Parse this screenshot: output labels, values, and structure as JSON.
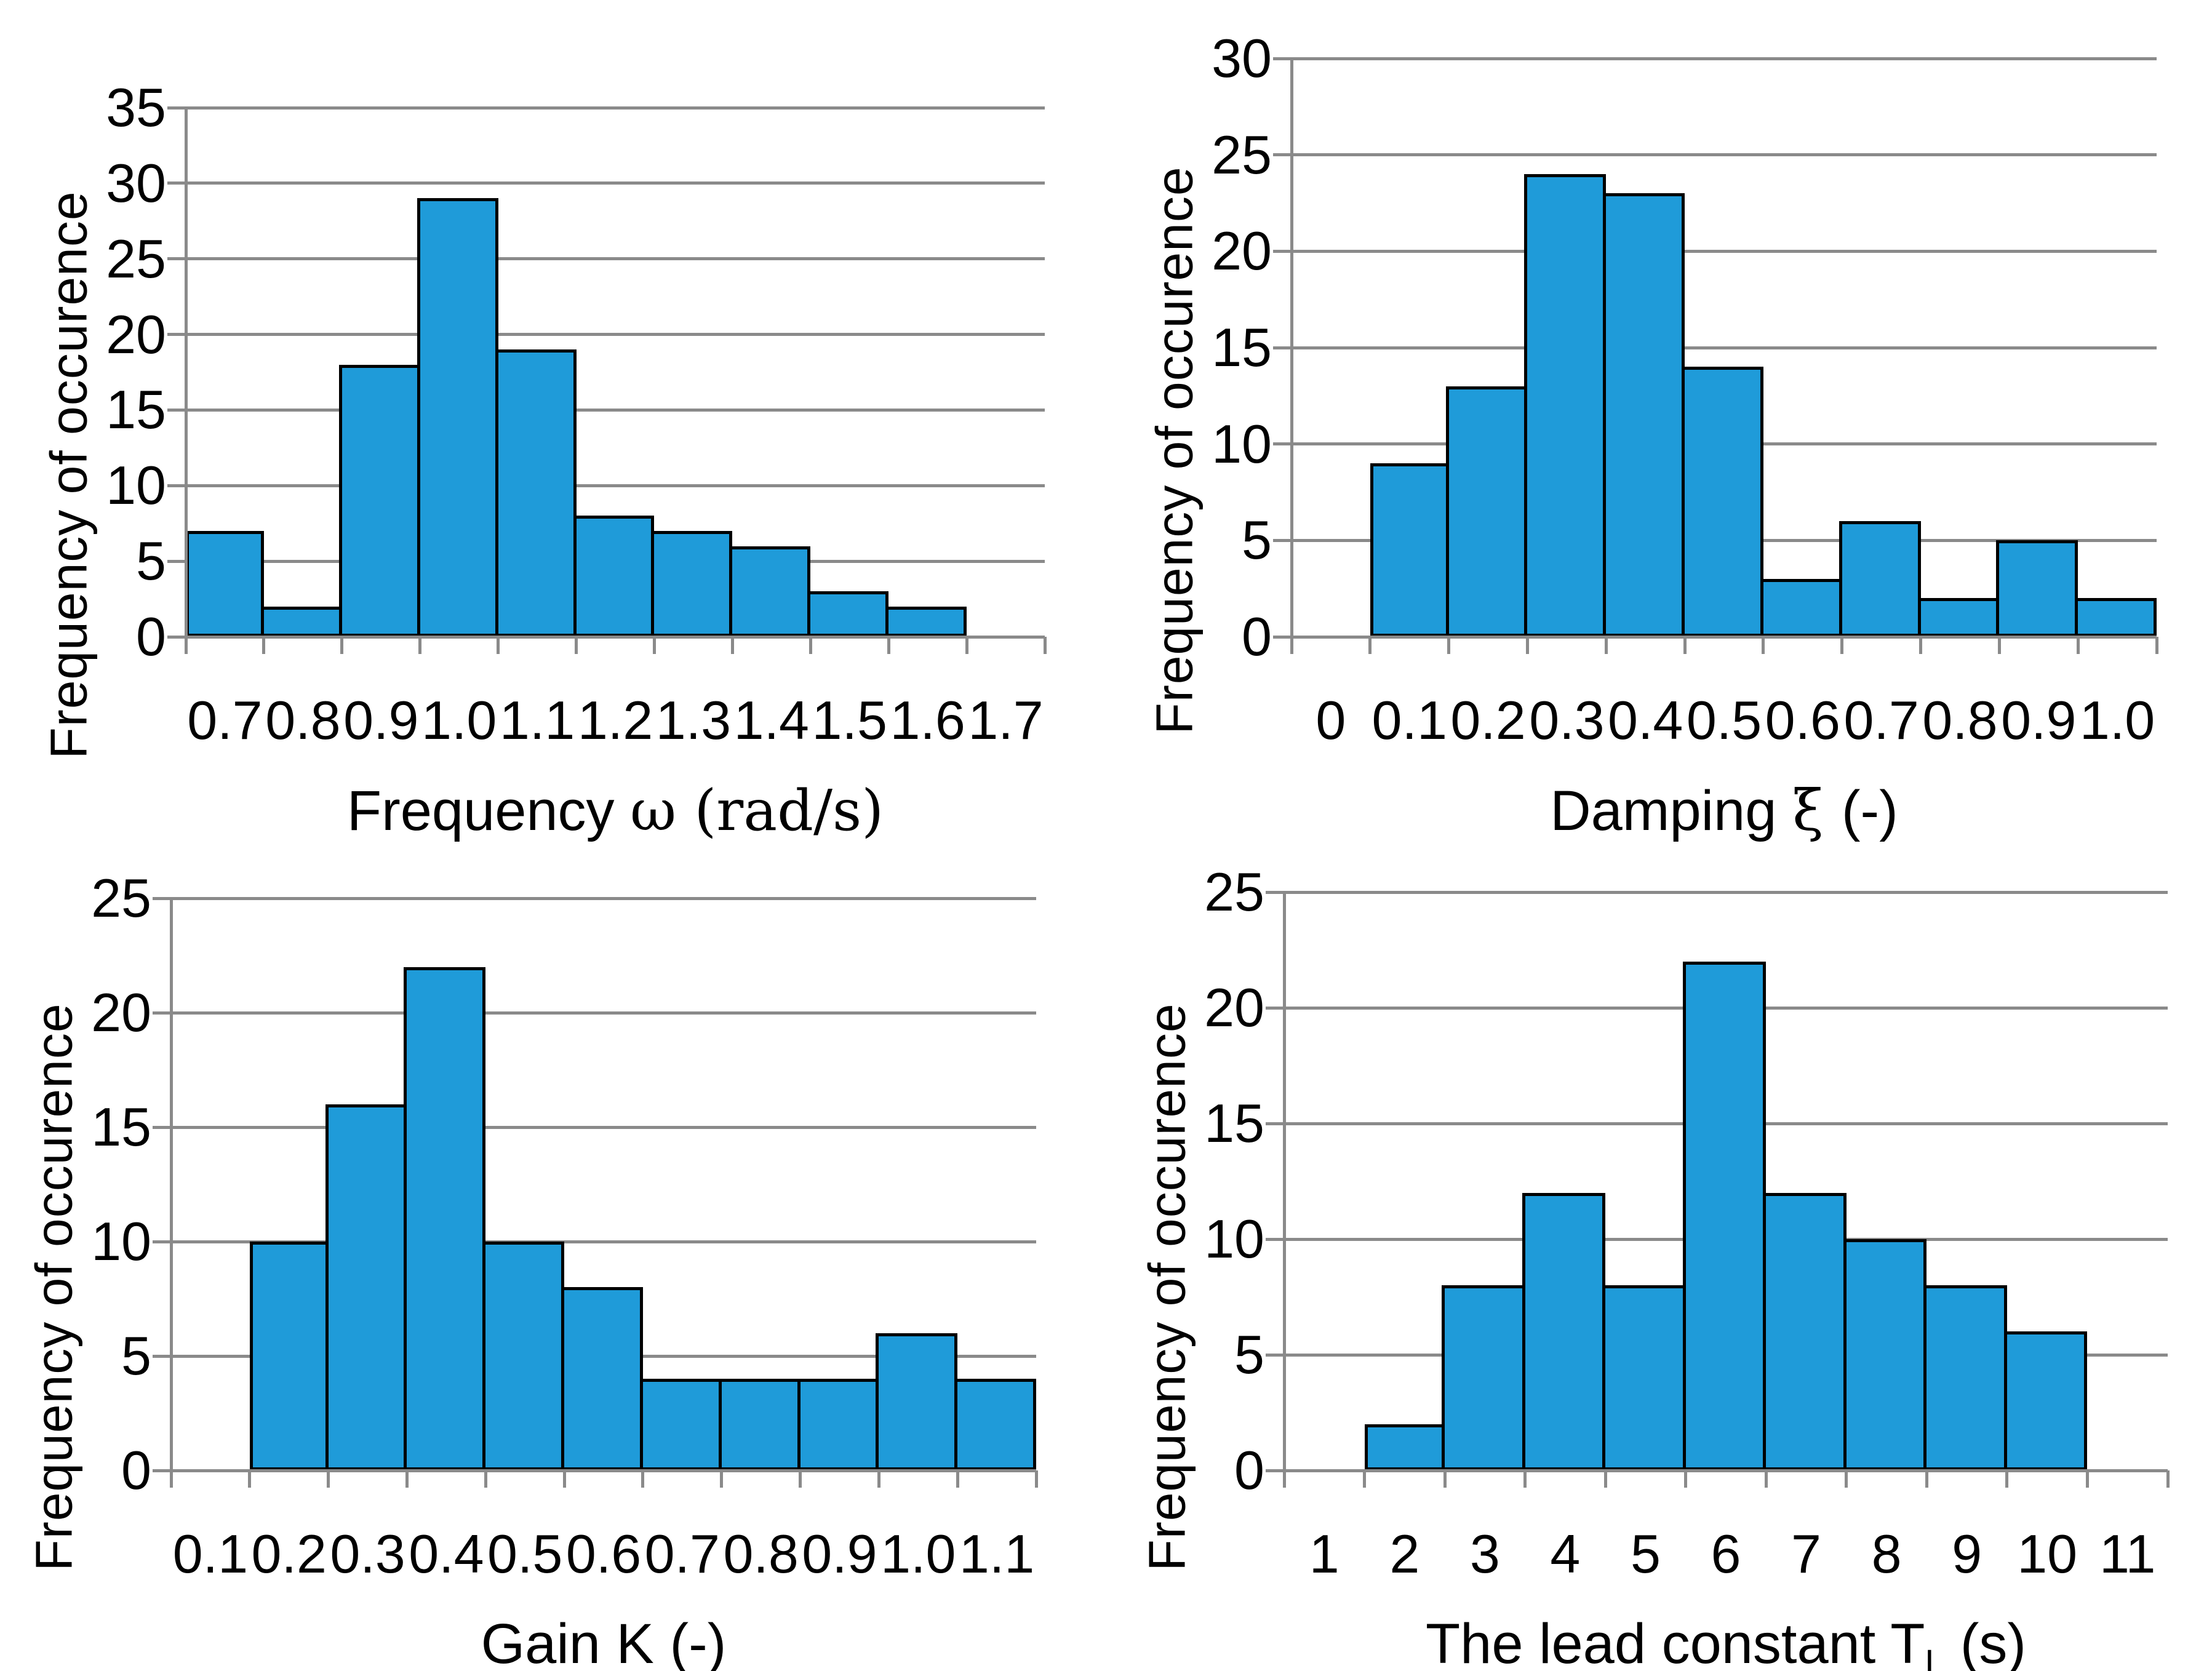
{
  "figure": {
    "background": "#FFFFFF"
  },
  "style": {
    "bar_fill": "#1F9BD9",
    "bar_stroke": "#000000",
    "grid_color": "#8A8A8A",
    "axis_color": "#8A8A8A",
    "text_color": "#000000"
  },
  "chart_data": [
    {
      "type": "bar",
      "title": "",
      "xlabel": "Frequency ω (rad/s)",
      "xlabel_segments": [
        {
          "text": "Frequency "
        },
        {
          "text": "ω (rad/s)",
          "serif": true
        }
      ],
      "ylabel": "Frequency of occurence",
      "categories": [
        "0.7",
        "0.8",
        "0.9",
        "1.0",
        "1.1",
        "1.2",
        "1.3",
        "1.4",
        "1.5",
        "1.6",
        "1.7"
      ],
      "values": [
        7,
        2,
        18,
        29,
        19,
        8,
        7,
        6,
        3,
        2,
        0
      ],
      "ylim": [
        0,
        35
      ],
      "ytick_step": 5,
      "yticks": [
        0,
        5,
        10,
        15,
        20,
        25,
        30,
        35
      ],
      "grid": true,
      "legend": "none"
    },
    {
      "type": "bar",
      "title": "",
      "xlabel": "Damping ξ (-)",
      "xlabel_segments": [
        {
          "text": "Damping "
        },
        {
          "text": "ξ ",
          "serif": true
        },
        {
          "text": "(-)"
        }
      ],
      "ylabel": "Frequency of occurence",
      "categories": [
        "0",
        "0.1",
        "0.2",
        "0.3",
        "0.4",
        "0.5",
        "0.6",
        "0.7",
        "0.8",
        "0.9",
        "1.0"
      ],
      "values": [
        0,
        9,
        13,
        24,
        23,
        14,
        3,
        6,
        2,
        5,
        2
      ],
      "ylim": [
        0,
        30
      ],
      "ytick_step": 5,
      "yticks": [
        0,
        5,
        10,
        15,
        20,
        25,
        30
      ],
      "grid": true,
      "legend": "none"
    },
    {
      "type": "bar",
      "title": "",
      "xlabel": "Gain K (-)",
      "xlabel_segments": [
        {
          "text": "Gain K (-)"
        }
      ],
      "ylabel": "Frequency of occurence",
      "categories": [
        "0.1",
        "0.2",
        "0.3",
        "0.4",
        "0.5",
        "0.6",
        "0.7",
        "0.8",
        "0.9",
        "1.0",
        "1.1"
      ],
      "values": [
        0,
        10,
        16,
        22,
        10,
        8,
        4,
        4,
        4,
        6,
        4
      ],
      "ylim": [
        0,
        25
      ],
      "ytick_step": 5,
      "yticks": [
        0,
        5,
        10,
        15,
        20,
        25
      ],
      "grid": true,
      "legend": "none"
    },
    {
      "type": "bar",
      "title": "",
      "xlabel": "The lead constant TL (s)",
      "xlabel_segments": [
        {
          "text": "The lead constant T"
        },
        {
          "text": "L",
          "sub": true
        },
        {
          "text": " (s)"
        }
      ],
      "ylabel": "Frequency of occurence",
      "categories": [
        "1",
        "2",
        "3",
        "4",
        "5",
        "6",
        "7",
        "8",
        "9",
        "10",
        "11"
      ],
      "values": [
        0,
        2,
        8,
        12,
        8,
        22,
        12,
        10,
        8,
        6,
        0
      ],
      "ylim": [
        0,
        25
      ],
      "ytick_step": 5,
      "yticks": [
        0,
        5,
        10,
        15,
        20,
        25
      ],
      "grid": true,
      "legend": "none"
    }
  ]
}
